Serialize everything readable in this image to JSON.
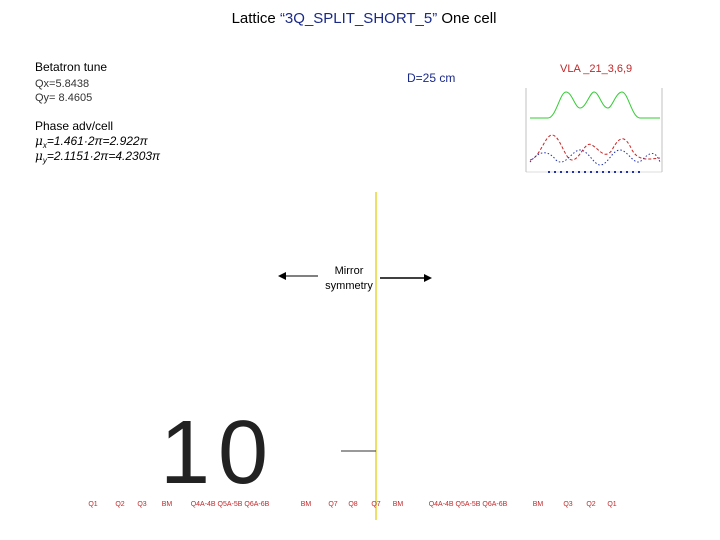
{
  "header": {
    "title_prefix": "Lattice",
    "title_name": "“3Q_SPLIT_SHORT_5”",
    "title_suffix": "One cell"
  },
  "tune": {
    "heading": "Betatron tune",
    "qx": "Qx=5.8438",
    "qy": "Qy= 8.4605"
  },
  "dispersion": "D=25 cm",
  "inset_label": "VLA _21_3,6,9",
  "phase": {
    "heading": "Phase adv/cell",
    "mux": {
      "symbol": "μ",
      "sub": "x",
      "rest": "=1.461·2π=2.922π"
    },
    "muy": {
      "symbol": "μ",
      "sub": "y",
      "rest": "=2.1151·2π=4.2303π"
    }
  },
  "mirror": [
    "Mirror",
    "symmetry"
  ],
  "big_number": "10",
  "elements": [
    "Q1",
    "Q2",
    "Q3",
    "BM",
    "Q4A-4B Q5A-5B Q6A-6B",
    "BM",
    "Q7",
    "Q8",
    "Q7",
    "BM",
    "Q4A-4B Q5A-5B Q6A-6B",
    "BM",
    "Q3",
    "Q2",
    "Q1"
  ]
}
